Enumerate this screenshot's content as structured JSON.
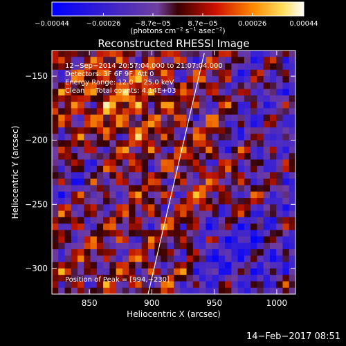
{
  "chart_data": {
    "type": "heatmap",
    "title": "Reconstructed RHESSI Image",
    "xlabel": "Heliocentric X (arcsec)",
    "ylabel": "Heliocentric Y (arcsec)",
    "xlim": [
      820,
      1015
    ],
    "ylim": [
      -320,
      -130
    ],
    "x_ticks": [
      850,
      900,
      950,
      1000
    ],
    "x_tick_labels": [
      "850",
      "900",
      "950",
      "1000"
    ],
    "y_ticks": [
      -150,
      -200,
      -250,
      -300
    ],
    "y_tick_labels": [
      "−150",
      "−200",
      "−250",
      "−300"
    ],
    "colorbar": {
      "vmin": -0.00044,
      "vmax": 0.00044,
      "tick_values": [
        -0.00044,
        -0.00026,
        -8.7e-05,
        8.7e-05,
        0.00026,
        0.00044
      ],
      "tick_labels": [
        "−0.00044",
        "−0.00026",
        "−8.7e−05",
        "8.7e−05",
        "0.00026",
        "0.00044"
      ],
      "unit_main": "(photons cm",
      "unit_exp1": "−2",
      "unit_mid": " s",
      "unit_exp2": "−1",
      "unit_end": " asec",
      "unit_exp3": "−2",
      "unit_close": ")"
    },
    "annotations": {
      "time_range": "12−Sep−2014 20:57:04.000 to 21:07:04.000",
      "detectors": "Detectors: 3F 6F 9F, Att 0",
      "energy": "Energy Range: 12.0 − 25.0 keV",
      "method": "Clean     Total counts: 4.14E+03",
      "peak": "Position of Peak = [994,−230]"
    },
    "limb_line": [
      [
        897,
        -320
      ],
      [
        942,
        -132
      ]
    ],
    "grid_size": [
      38,
      38
    ]
  },
  "footer": {
    "date": "14−Feb−2017 08:51"
  }
}
